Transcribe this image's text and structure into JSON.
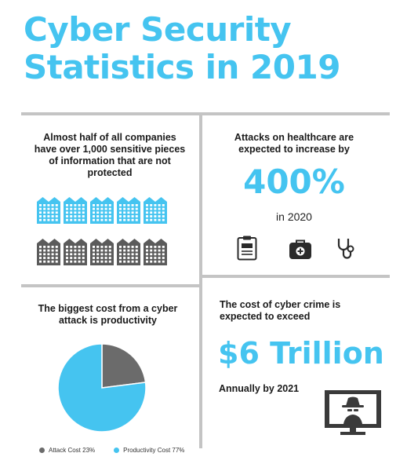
{
  "title_line1": "Cyber Security",
  "title_line2": "Statistics in 2019",
  "panel_companies": {
    "text": "Almost half of all companies have over 1,000 sensitive pieces of information that are not protected",
    "icon": "building-icon",
    "protected_count": 5,
    "unprotected_count": 5,
    "colors": {
      "blue": "#45c4f0",
      "gray": "#5b5b5b"
    }
  },
  "panel_healthcare": {
    "text": "Attacks on healthcare are expected to increase by",
    "stat": "400%",
    "subtext": "in 2020",
    "icons": [
      "clipboard-icon",
      "medical-kit-icon",
      "stethoscope-icon"
    ]
  },
  "panel_productivity": {
    "text": "The biggest cost from a cyber attack is productivity",
    "chart_data": {
      "type": "pie",
      "slices": [
        {
          "name": "Attack Cost 23%",
          "value": 23,
          "color": "#6b6b6b"
        },
        {
          "name": "Productivity Cost 77%",
          "value": 77,
          "color": "#45c4f0"
        }
      ],
      "legend": "bottom"
    }
  },
  "panel_cybercrime": {
    "text": "The cost of cyber crime is expected to exceed",
    "stat": "$6 Trillion",
    "subtext": "Annually by 2021",
    "icon": "hacker-monitor-icon"
  }
}
